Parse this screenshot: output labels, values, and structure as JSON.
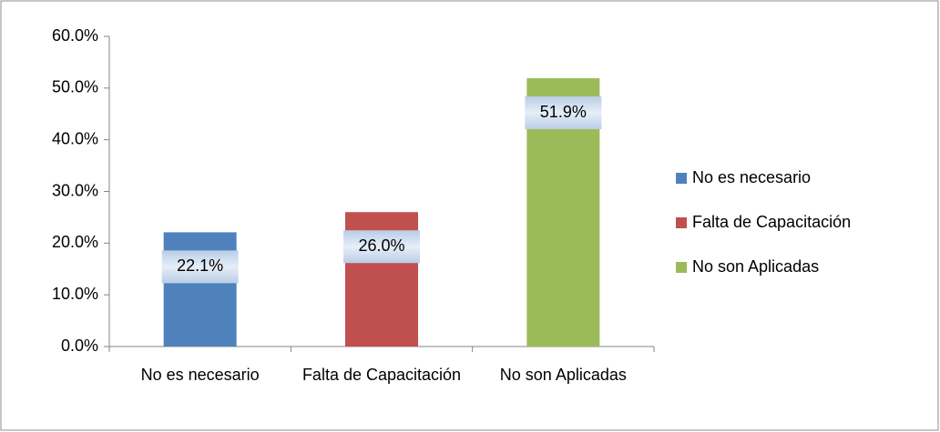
{
  "chart_data": {
    "type": "bar",
    "categories": [
      "No es necesario",
      "Falta de Capacitación",
      "No son Aplicadas"
    ],
    "values": [
      22.1,
      26.0,
      51.9
    ],
    "value_labels": [
      "22.1%",
      "26.0%",
      "51.9%"
    ],
    "colors": [
      "#4f81bd",
      "#c0504d",
      "#9bbb59"
    ],
    "ylim": [
      0,
      60
    ],
    "yticks": [
      {
        "value": 0,
        "label": "0.0%"
      },
      {
        "value": 10,
        "label": "10.0%"
      },
      {
        "value": 20,
        "label": "20.0%"
      },
      {
        "value": 30,
        "label": "30.0%"
      },
      {
        "value": 40,
        "label": "40.0%"
      },
      {
        "value": 50,
        "label": "50.0%"
      },
      {
        "value": 60,
        "label": "60.0%"
      }
    ],
    "legend": "right"
  }
}
